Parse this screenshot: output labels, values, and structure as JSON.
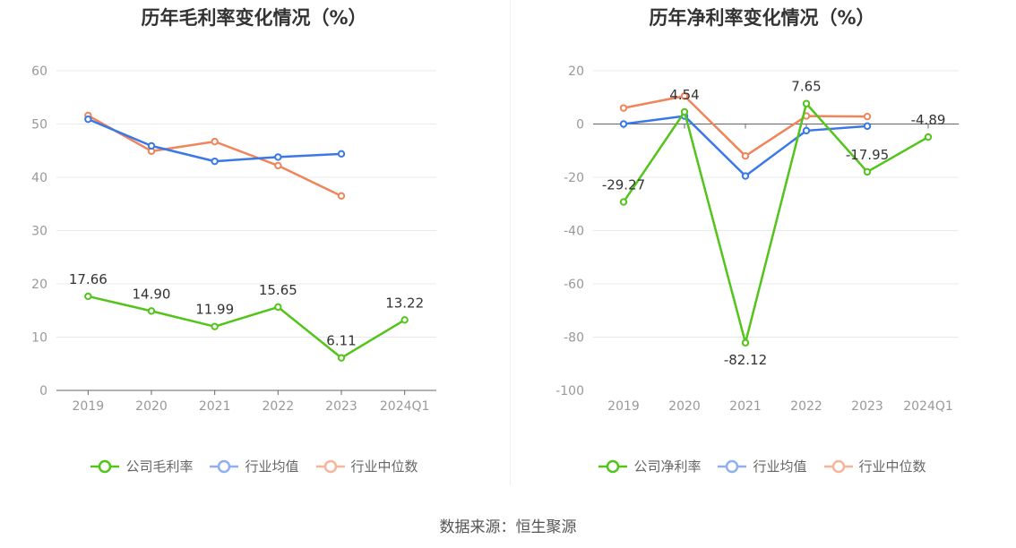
{
  "chart_data": [
    {
      "type": "line",
      "title": "历年毛利率变化情况（%）",
      "categories": [
        "2019",
        "2020",
        "2021",
        "2022",
        "2023",
        "2024Q1"
      ],
      "ylim": [
        0,
        60
      ],
      "yticks": [
        0,
        10,
        20,
        30,
        40,
        50,
        60
      ],
      "grid": true,
      "series": [
        {
          "name": "公司毛利率",
          "color": "#52c41a",
          "values": [
            17.66,
            14.9,
            11.99,
            15.65,
            6.11,
            13.22
          ],
          "labels": [
            "17.66",
            "14.90",
            "11.99",
            "15.65",
            "6.11",
            "13.22"
          ]
        },
        {
          "name": "行业均值",
          "color": "#3b78e7",
          "values": [
            50.9,
            45.9,
            43.0,
            43.8,
            44.4,
            null
          ]
        },
        {
          "name": "行业中位数",
          "color": "#f0845a",
          "values": [
            51.6,
            44.9,
            46.7,
            42.2,
            36.5,
            null
          ]
        }
      ]
    },
    {
      "type": "line",
      "title": "历年净利率变化情况（%）",
      "categories": [
        "2019",
        "2020",
        "2021",
        "2022",
        "2023",
        "2024Q1"
      ],
      "ylim": [
        -100,
        20
      ],
      "yticks": [
        -100,
        -80,
        -60,
        -40,
        -20,
        0,
        20
      ],
      "grid": true,
      "series": [
        {
          "name": "公司净利率",
          "color": "#52c41a",
          "values": [
            -29.27,
            4.54,
            -82.12,
            7.65,
            -17.95,
            -4.89
          ],
          "labels": [
            "-29.27",
            "4.54",
            "-82.12",
            "7.65",
            "-17.95",
            "-4.89"
          ]
        },
        {
          "name": "行业均值",
          "color": "#3b78e7",
          "values": [
            0.0,
            3.0,
            -19.5,
            -2.5,
            -0.8,
            null
          ]
        },
        {
          "name": "行业中位数",
          "color": "#f0845a",
          "values": [
            6.0,
            10.5,
            -12.0,
            3.0,
            2.8,
            null
          ]
        }
      ]
    }
  ],
  "footer": "数据来源：恒生聚源"
}
